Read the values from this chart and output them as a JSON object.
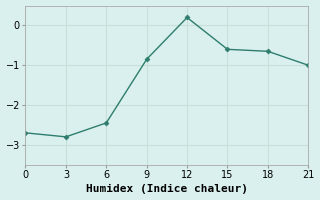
{
  "x": [
    0,
    3,
    6,
    9,
    12,
    15,
    18,
    21
  ],
  "y": [
    -2.7,
    -2.8,
    -2.45,
    -0.85,
    0.2,
    -0.6,
    -0.65,
    -1.0
  ],
  "line_color": "#2e7d6e",
  "marker": "D",
  "marker_size": 2.5,
  "bg_color": "#d9f0ee",
  "grid_color": "#c8deda",
  "xlabel": "Humidex (Indice chaleur)",
  "xlim": [
    0,
    21
  ],
  "ylim": [
    -3.5,
    0.5
  ],
  "xticks": [
    0,
    3,
    6,
    9,
    12,
    15,
    18,
    21
  ],
  "yticks": [
    0,
    -1,
    -2,
    -3
  ],
  "xlabel_fontsize": 8,
  "tick_fontsize": 7,
  "line_width": 1.0
}
